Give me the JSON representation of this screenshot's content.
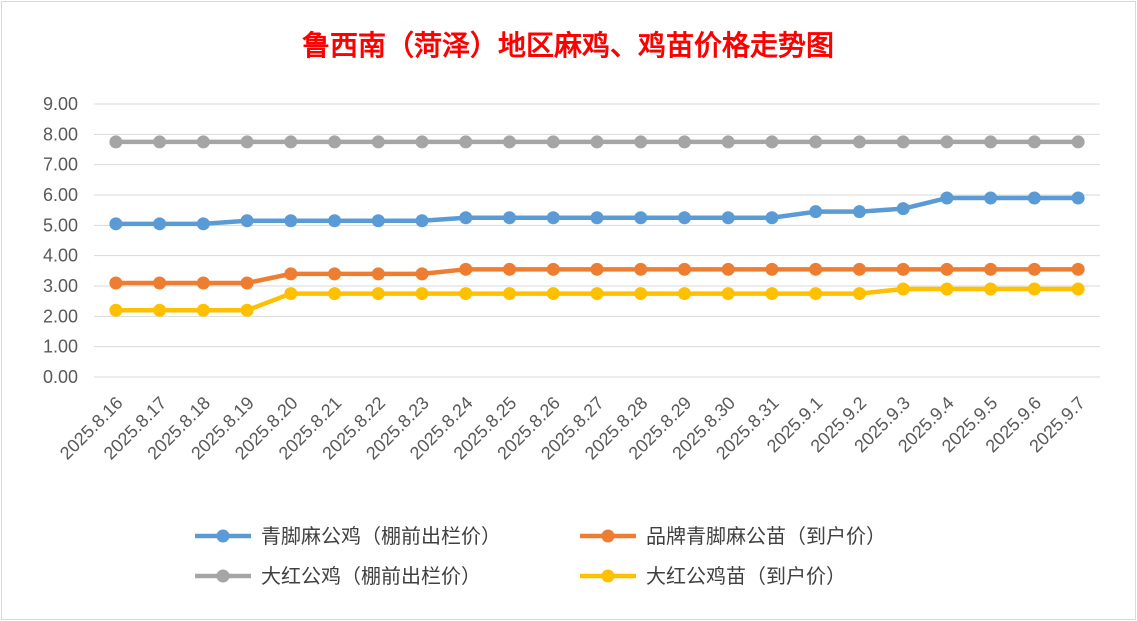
{
  "chart_data": {
    "type": "line",
    "title": "鲁西南（菏泽）地区麻鸡、鸡苗价格走势图",
    "xlabel": "",
    "ylabel": "",
    "ylim": [
      0,
      9
    ],
    "y_ticks": [
      "0.00",
      "1.00",
      "2.00",
      "3.00",
      "4.00",
      "5.00",
      "6.00",
      "7.00",
      "8.00",
      "9.00"
    ],
    "grid": true,
    "legend_position": "bottom",
    "categories": [
      "2025.8.16",
      "2025.8.17",
      "2025.8.18",
      "2025.8.19",
      "2025.8.20",
      "2025.8.21",
      "2025.8.22",
      "2025.8.23",
      "2025.8.24",
      "2025.8.25",
      "2025.8.26",
      "2025.8.27",
      "2025.8.28",
      "2025.8.29",
      "2025.8.30",
      "2025.8.31",
      "2025.9.1",
      "2025.9.2",
      "2025.9.3",
      "2025.9.4",
      "2025.9.5",
      "2025.9.6",
      "2025.9.7"
    ],
    "series": [
      {
        "name": "青脚麻公鸡（棚前出栏价）",
        "color": "#5b9bd5",
        "values": [
          5.05,
          5.05,
          5.05,
          5.15,
          5.15,
          5.15,
          5.15,
          5.15,
          5.25,
          5.25,
          5.25,
          5.25,
          5.25,
          5.25,
          5.25,
          5.25,
          5.45,
          5.45,
          5.55,
          5.9,
          5.9,
          5.9,
          5.9
        ]
      },
      {
        "name": "品牌青脚麻公苗（到户价）",
        "color": "#ed7d31",
        "values": [
          3.1,
          3.1,
          3.1,
          3.1,
          3.4,
          3.4,
          3.4,
          3.4,
          3.55,
          3.55,
          3.55,
          3.55,
          3.55,
          3.55,
          3.55,
          3.55,
          3.55,
          3.55,
          3.55,
          3.55,
          3.55,
          3.55,
          3.55
        ]
      },
      {
        "name": "大红公鸡（棚前出栏价）",
        "color": "#a5a5a5",
        "values": [
          7.75,
          7.75,
          7.75,
          7.75,
          7.75,
          7.75,
          7.75,
          7.75,
          7.75,
          7.75,
          7.75,
          7.75,
          7.75,
          7.75,
          7.75,
          7.75,
          7.75,
          7.75,
          7.75,
          7.75,
          7.75,
          7.75,
          7.75
        ]
      },
      {
        "name": "大红公鸡苗（到户价）",
        "color": "#ffc000",
        "values": [
          2.2,
          2.2,
          2.2,
          2.2,
          2.75,
          2.75,
          2.75,
          2.75,
          2.75,
          2.75,
          2.75,
          2.75,
          2.75,
          2.75,
          2.75,
          2.75,
          2.75,
          2.75,
          2.9,
          2.9,
          2.9,
          2.9,
          2.9
        ]
      }
    ]
  }
}
